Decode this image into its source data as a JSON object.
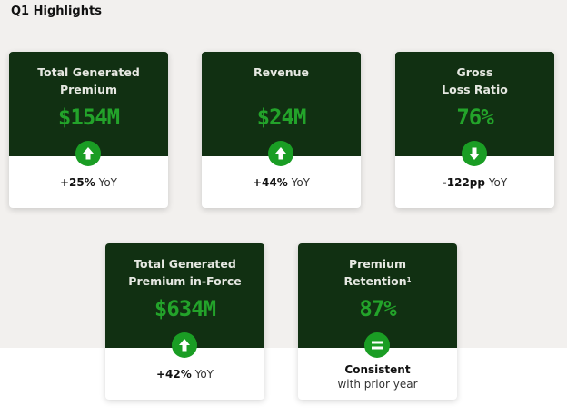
{
  "page": {
    "title": "Q1 Highlights"
  },
  "cards": [
    {
      "title": "Total Generated\nPremium",
      "value": "$154M",
      "trend": "up",
      "indicator_icon": "arrow-up-icon",
      "change": "+25%",
      "change_suffix": "YoY"
    },
    {
      "title": "Revenue",
      "value": "$24M",
      "trend": "up",
      "indicator_icon": "arrow-up-icon",
      "change": "+44%",
      "change_suffix": "YoY"
    },
    {
      "title": "Gross\nLoss Ratio",
      "value": "76%",
      "trend": "down",
      "indicator_icon": "arrow-down-icon",
      "change": "-122pp",
      "change_suffix": "YoY"
    },
    {
      "title": "Total Generated\nPremium in-Force",
      "value": "$634M",
      "trend": "up",
      "indicator_icon": "arrow-up-icon",
      "change": "+42%",
      "change_suffix": "YoY"
    },
    {
      "title_line1": "Premium",
      "title_line2": "Retention",
      "footnote": "1",
      "value": "87%",
      "trend": "equal",
      "indicator_icon": "equals-icon",
      "status": "Consistent",
      "status_note": "with prior year"
    }
  ],
  "colors": {
    "card_dark": "#113012",
    "value_green": "#23a32a",
    "indicator_green": "#1a9d24",
    "background": "#f2f0ee"
  }
}
